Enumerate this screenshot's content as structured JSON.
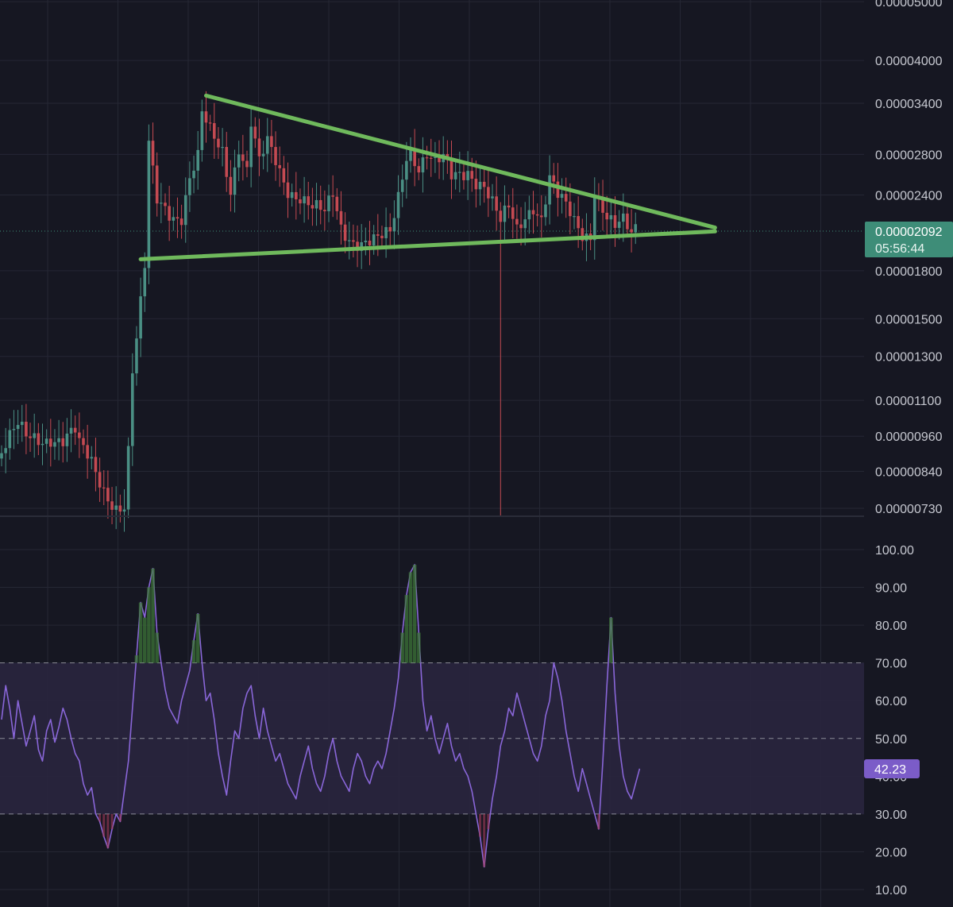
{
  "colors": {
    "background": "#161722",
    "grid": "#252734",
    "candle_up": "#4a8f84",
    "candle_down": "#c44a52",
    "trendline": "#6fb95c",
    "price_badge": "#3e8d78",
    "rsi_line": "#8966d8",
    "rsi_badge": "#7b5cc8",
    "rsi_band": "#2a2640",
    "axis_text": "#c6c8d0",
    "overbought_fill": "#3f7a38",
    "oversold_fill": "#a23b5a"
  },
  "chart_data": [
    {
      "type": "candlestick",
      "title": "",
      "scale": "log",
      "ylim": [
        7.1e-06,
        5.2e-06
      ],
      "y_tick_labels": [
        "0.00005000",
        "0.00004000",
        "0.00003400",
        "0.00002800",
        "0.00002400",
        "0.00001800",
        "0.00001500",
        "0.00001300",
        "0.00001100",
        "0.00000960",
        "0.00000840",
        "0.00000730"
      ],
      "y_tick_values": [
        5e-05,
        4e-05,
        3.4e-05,
        2.8e-05,
        2.4e-05,
        1.8e-05,
        1.5e-05,
        1.3e-05,
        1.1e-05,
        9.6e-06,
        8.4e-06,
        7.3e-06
      ],
      "current_price_label": "0.00002092",
      "current_price": 2.092e-05,
      "countdown_label": "05:56:44",
      "grid": true,
      "annotations": [
        {
          "type": "trendline",
          "name": "resistance",
          "from": {
            "bar": 50,
            "price": 3.5e-05
          },
          "to": {
            "bar": 156,
            "price": 2.12e-05
          }
        },
        {
          "type": "trendline",
          "name": "support",
          "from": {
            "bar": 34,
            "price": 1.88e-05
          },
          "to": {
            "bar": 156,
            "price": 2.09e-05
          }
        }
      ],
      "wick_spike": {
        "bar": 122,
        "low": 7.1e-06
      },
      "path_points": [
        [
          0,
          9e-06
        ],
        [
          4,
          9.8e-06
        ],
        [
          6,
          9.5e-06
        ],
        [
          8,
          9.6e-06
        ],
        [
          12,
          9.7e-06
        ],
        [
          15,
          9.4e-06
        ],
        [
          18,
          9.6e-06
        ],
        [
          19,
          9.1e-06
        ],
        [
          22,
          8.7e-06
        ],
        [
          25,
          8e-06
        ],
        [
          28,
          7.4e-06
        ],
        [
          30,
          7.3e-06
        ],
        [
          31,
          8.9e-06
        ],
        [
          32,
          1.2e-05
        ],
        [
          33,
          1.35e-05
        ],
        [
          34,
          1.55e-05
        ],
        [
          35,
          1.8e-05
        ],
        [
          36,
          2.9e-05
        ],
        [
          38,
          2.4e-05
        ],
        [
          40,
          2.35e-05
        ],
        [
          42,
          2.25e-05
        ],
        [
          44,
          2.2e-05
        ],
        [
          46,
          2.5e-05
        ],
        [
          48,
          2.7e-05
        ],
        [
          49,
          3.2e-05
        ],
        [
          51,
          3.05e-05
        ],
        [
          54,
          2.9e-05
        ],
        [
          56,
          2.5e-05
        ],
        [
          58,
          2.9e-05
        ],
        [
          60,
          2.6e-05
        ],
        [
          61,
          3.1e-05
        ],
        [
          63,
          2.65e-05
        ],
        [
          65,
          2.9e-05
        ],
        [
          67,
          2.75e-05
        ],
        [
          70,
          2.5e-05
        ],
        [
          73,
          2.4e-05
        ],
        [
          76,
          2.25e-05
        ],
        [
          79,
          2.2e-05
        ],
        [
          81,
          2.4e-05
        ],
        [
          83,
          2.15e-05
        ],
        [
          86,
          2.05e-05
        ],
        [
          89,
          2e-05
        ],
        [
          92,
          1.98e-05
        ],
        [
          95,
          2.05e-05
        ],
        [
          97,
          2.4e-05
        ],
        [
          99,
          2.85e-05
        ],
        [
          100,
          2.9e-05
        ],
        [
          102,
          2.7e-05
        ],
        [
          104,
          2.8e-05
        ],
        [
          106,
          2.65e-05
        ],
        [
          108,
          2.7e-05
        ],
        [
          110,
          2.55e-05
        ],
        [
          112,
          2.62e-05
        ],
        [
          114,
          2.68e-05
        ],
        [
          116,
          2.58e-05
        ],
        [
          118,
          2.5e-05
        ],
        [
          120,
          2.3e-05
        ],
        [
          122,
          2.12e-05
        ],
        [
          124,
          2.25e-05
        ],
        [
          126,
          2.1e-05
        ],
        [
          128,
          2.25e-05
        ],
        [
          130,
          2.35e-05
        ],
        [
          132,
          2.22e-05
        ],
        [
          134,
          2.55e-05
        ],
        [
          136,
          2.35e-05
        ],
        [
          138,
          2.25e-05
        ],
        [
          140,
          2.15e-05
        ],
        [
          142,
          2.08e-05
        ],
        [
          144,
          2.1e-05
        ],
        [
          145,
          2.5e-05
        ],
        [
          146,
          2.4e-05
        ],
        [
          148,
          2.22e-05
        ],
        [
          150,
          2.1e-05
        ],
        [
          152,
          2.12e-05
        ],
        [
          154,
          2.03e-05
        ],
        [
          155,
          2.09e-05
        ]
      ]
    },
    {
      "type": "line",
      "title": "",
      "ylim": [
        7,
        103
      ],
      "y_tick_labels": [
        "100.00",
        "90.00",
        "80.00",
        "70.00",
        "60.00",
        "50.00",
        "40.00",
        "30.00",
        "20.00",
        "10.00"
      ],
      "y_tick_values": [
        100,
        90,
        80,
        70,
        60,
        50,
        40,
        30,
        20,
        10
      ],
      "band": [
        30,
        70
      ],
      "dashed_levels": [
        70,
        50,
        30
      ],
      "current_value_label": "42.23",
      "current_value": 42.23,
      "grid": true,
      "series": [
        {
          "values": [
            55,
            64,
            58,
            50,
            60,
            54,
            48,
            52,
            56,
            47,
            44,
            52,
            55,
            49,
            53,
            58,
            55,
            50,
            46,
            44,
            38,
            35,
            37,
            30,
            28,
            24,
            21,
            26,
            30,
            28,
            36,
            44,
            58,
            72,
            86,
            82,
            90,
            95,
            78,
            70,
            63,
            58,
            56,
            54,
            60,
            64,
            68,
            76,
            83,
            70,
            60,
            62,
            55,
            46,
            40,
            35,
            44,
            52,
            50,
            58,
            62,
            64,
            56,
            50,
            58,
            52,
            48,
            44,
            46,
            42,
            38,
            36,
            34,
            40,
            44,
            48,
            42,
            38,
            36,
            40,
            46,
            50,
            44,
            40,
            38,
            36,
            42,
            46,
            44,
            40,
            38,
            42,
            44,
            42,
            46,
            52,
            58,
            66,
            78,
            88,
            94,
            96,
            78,
            60,
            52,
            56,
            50,
            46,
            50,
            54,
            48,
            44,
            46,
            42,
            40,
            36,
            30,
            24,
            16,
            26,
            34,
            40,
            48,
            52,
            58,
            56,
            62,
            58,
            54,
            50,
            46,
            44,
            48,
            56,
            60,
            70,
            66,
            60,
            52,
            46,
            40,
            36,
            42,
            38,
            34,
            30,
            26,
            44,
            64,
            82,
            62,
            48,
            40,
            36,
            34,
            38,
            42
          ]
        }
      ]
    }
  ]
}
